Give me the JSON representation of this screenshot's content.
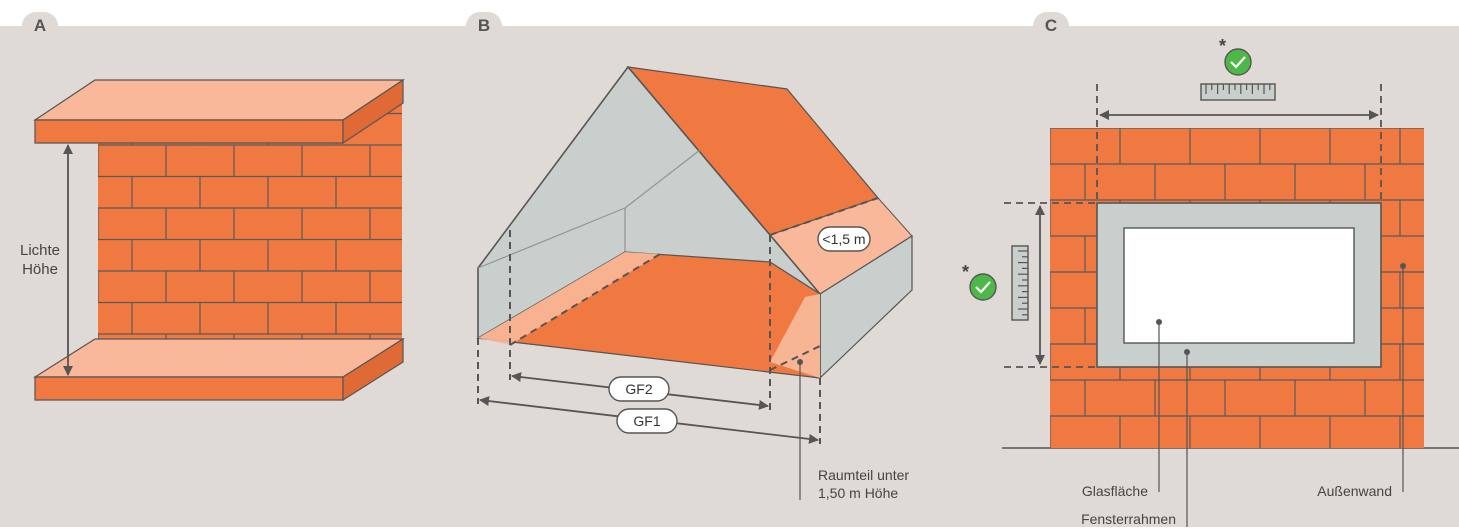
{
  "panels": {
    "a": {
      "badge": "A",
      "height_label_line1": "Lichte",
      "height_label_line2": "Höhe"
    },
    "b": {
      "badge": "B",
      "dim_gf2": "GF2",
      "dim_gf1": "GF1",
      "slope_height": "<1,5 m",
      "note_line1": "Raumteil unter",
      "note_line2": "1,50 m Höhe"
    },
    "c": {
      "badge": "C",
      "asterisk": "*",
      "label_glass": "Glasfläche",
      "label_frame": "Fensterrahmen",
      "label_wall": "Außenwand"
    }
  },
  "colors": {
    "background": "#e0dad6",
    "brick": "#f07841",
    "brick_light": "#f8b899",
    "brick_mid": "#f28a5a",
    "outline": "#555555",
    "glass_gray": "#c9cfcd",
    "check_green": "#4db848",
    "window_white": "#ffffff"
  }
}
